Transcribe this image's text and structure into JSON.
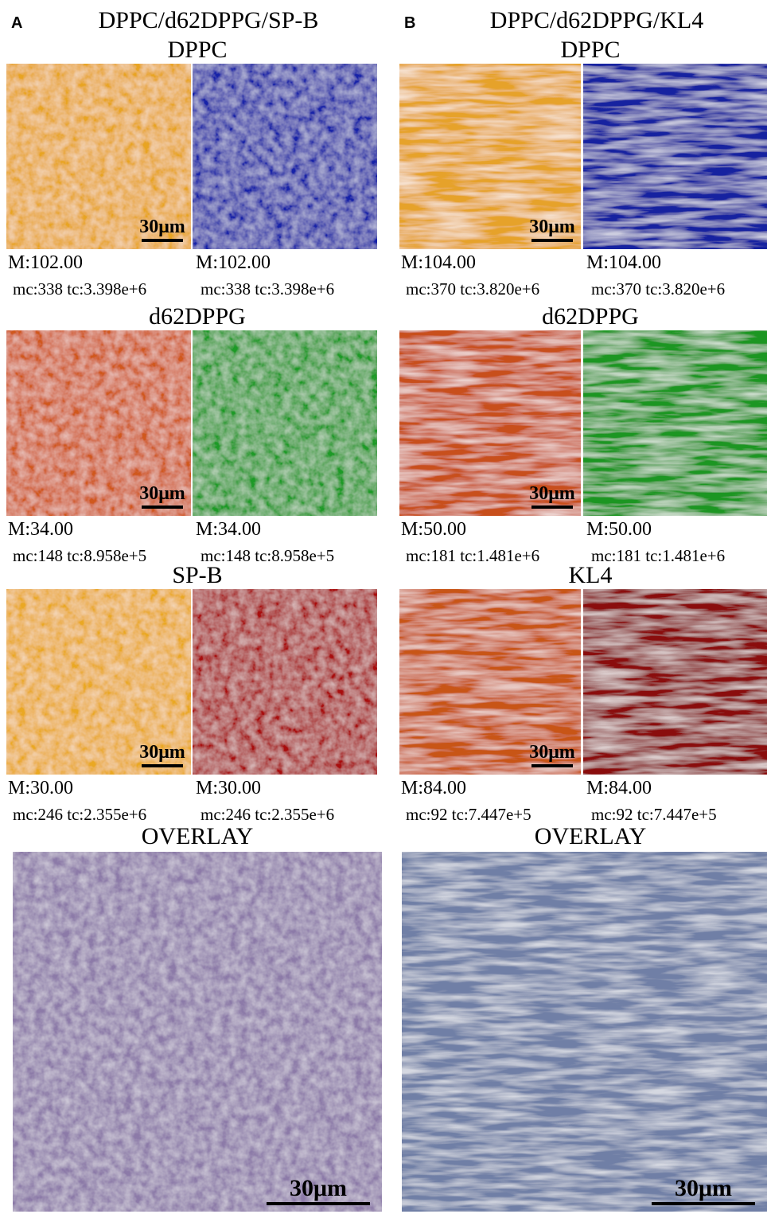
{
  "panels": [
    {
      "letter": "A",
      "title": "DPPC/d62DPPG/SP-B",
      "rows": [
        {
          "label": "DPPC",
          "scale": "30μm",
          "left": {
            "max": "M:102.00",
            "counts": "mc:338 tc:3.398e+6"
          },
          "right": {
            "max": "M:102.00",
            "counts": "mc:338 tc:3.398e+6"
          }
        },
        {
          "label": "d62DPPG",
          "scale": "30μm",
          "left": {
            "max": "M:34.00",
            "counts": "mc:148 tc:8.958e+5"
          },
          "right": {
            "max": "M:34.00",
            "counts": "mc:148 tc:8.958e+5"
          }
        },
        {
          "label": "SP-B",
          "scale": "30μm",
          "left": {
            "max": "M:30.00",
            "counts": "mc:246 tc:2.355e+6"
          },
          "right": {
            "max": "M:30.00",
            "counts": "mc:246 tc:2.355e+6"
          }
        }
      ],
      "overlay": {
        "label": "OVERLAY",
        "scale": "30μm"
      }
    },
    {
      "letter": "B",
      "title": "DPPC/d62DPPG/KL4",
      "rows": [
        {
          "label": "DPPC",
          "scale": "30μm",
          "left": {
            "max": "M:104.00",
            "counts": "mc:370 tc:3.820e+6"
          },
          "right": {
            "max": "M:104.00",
            "counts": "mc:370 tc:3.820e+6"
          }
        },
        {
          "label": "d62DPPG",
          "scale": "30μm",
          "left": {
            "max": "M:50.00",
            "counts": "mc:181 tc:1.481e+6"
          },
          "right": {
            "max": "M:50.00",
            "counts": "mc:181 tc:1.481e+6"
          }
        },
        {
          "label": "KL4",
          "scale": "30μm",
          "left": {
            "max": "M:84.00",
            "counts": "mc:92 tc:7.447e+5"
          },
          "right": {
            "max": "M:84.00",
            "counts": "mc:92 tc:7.447e+5"
          }
        }
      ],
      "overlay": {
        "label": "OVERLAY",
        "scale": "30μm"
      }
    }
  ]
}
